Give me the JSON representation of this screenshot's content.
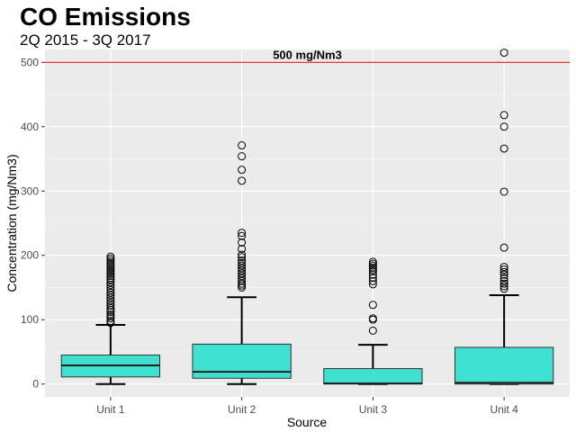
{
  "chart_data": {
    "type": "boxplot",
    "title": "CO Emissions",
    "subtitle": "2Q 2015 - 3Q 2017",
    "xlabel": "Source",
    "ylabel": "Concentration (mg/Nm3)",
    "ylim": [
      -20,
      520
    ],
    "yticks": [
      0,
      100,
      200,
      300,
      400,
      500
    ],
    "grid": true,
    "box_color": "#40E0D0",
    "reference_line": {
      "value": 500,
      "label": "500 mg/Nm3",
      "color": "#e31a1c"
    },
    "categories": [
      "Unit 1",
      "Unit 2",
      "Unit 3",
      "Unit 4"
    ],
    "boxes": [
      {
        "category": "Unit 1",
        "whisker_low": 0,
        "q1": 11,
        "median": 29,
        "q3": 45,
        "whisker_high": 92,
        "outliers": [
          95,
          98,
          102,
          105,
          108,
          112,
          115,
          118,
          122,
          126,
          130,
          134,
          138,
          142,
          146,
          150,
          154,
          158,
          162,
          165,
          168,
          171,
          174,
          177,
          180,
          183,
          186,
          189,
          192,
          195,
          198
        ]
      },
      {
        "category": "Unit 2",
        "whisker_low": 0,
        "q1": 9,
        "median": 19,
        "q3": 62,
        "whisker_high": 135,
        "outliers": [
          150,
          153,
          156,
          160,
          164,
          168,
          172,
          176,
          180,
          184,
          188,
          192,
          197,
          201,
          210,
          220,
          230,
          235,
          316,
          333,
          354,
          371
        ]
      },
      {
        "category": "Unit 3",
        "whisker_low": 0,
        "q1": 0,
        "median": 1,
        "q3": 24,
        "whisker_high": 61,
        "outliers": [
          83,
          100,
          102,
          123,
          155,
          160,
          165,
          170,
          175,
          178,
          181,
          184,
          187,
          190
        ]
      },
      {
        "category": "Unit 4",
        "whisker_low": 0,
        "q1": 0,
        "median": 2,
        "q3": 57,
        "whisker_high": 138,
        "outliers": [
          148,
          152,
          156,
          160,
          165,
          170,
          174,
          178,
          182,
          212,
          299,
          366,
          400,
          418,
          515
        ]
      }
    ]
  }
}
